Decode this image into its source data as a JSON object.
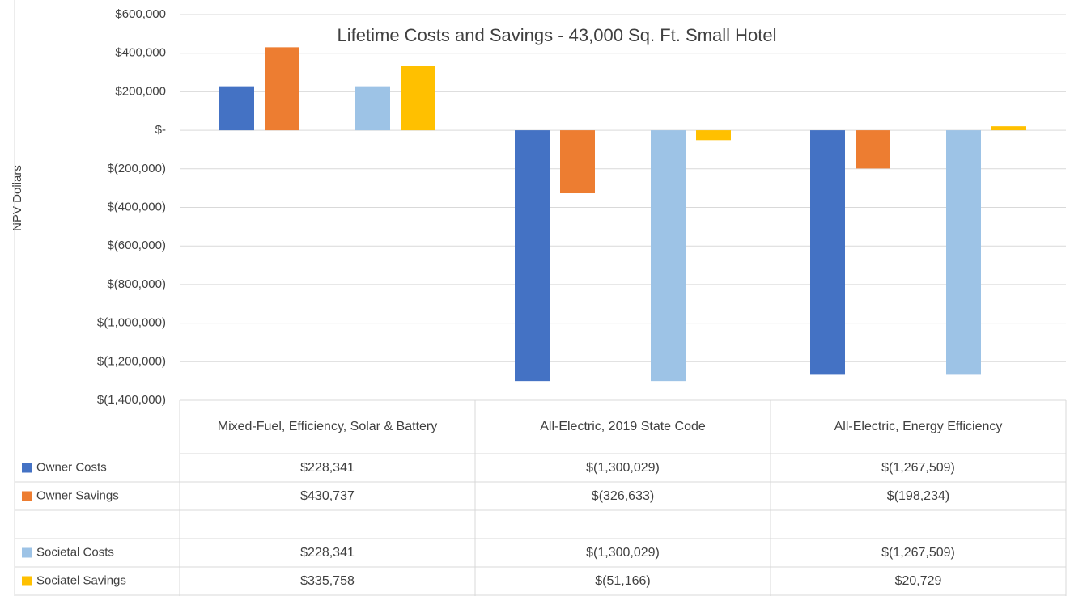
{
  "chart_data": {
    "type": "bar",
    "title": "Lifetime Costs and Savings - 43,000 Sq. Ft. Small Hotel",
    "y_label": "NPV Dollars",
    "categories": [
      "Mixed-Fuel, Efficiency, Solar & Battery",
      "All-Electric, 2019 State Code",
      "All-Electric, Energy Efficiency"
    ],
    "series": [
      {
        "name": "Owner Costs",
        "color": "#4472c4",
        "values": [
          228341,
          -1300029,
          -1267509
        ],
        "value_labels": [
          "$228,341",
          "$(1,300,029)",
          "$(1,267,509)"
        ]
      },
      {
        "name": "Owner Savings",
        "color": "#ed7d31",
        "values": [
          430737,
          -326633,
          -198234
        ],
        "value_labels": [
          "$430,737",
          "$(326,633)",
          "$(198,234)"
        ]
      },
      {
        "name": "Societal Costs",
        "color": "#9dc3e6",
        "values": [
          228341,
          -1300029,
          -1267509
        ],
        "value_labels": [
          "$228,341",
          "$(1,300,029)",
          "$(1,267,509)"
        ]
      },
      {
        "name": "Sociatel Savings",
        "color": "#ffc000",
        "values": [
          335758,
          -51166,
          20729
        ],
        "value_labels": [
          "$335,758",
          "$(51,166)",
          "$20,729"
        ]
      }
    ],
    "ylim": [
      -1400000,
      600000
    ],
    "yticks": [
      {
        "value": 600000,
        "label": "$600,000"
      },
      {
        "value": 400000,
        "label": "$400,000"
      },
      {
        "value": 200000,
        "label": "$200,000"
      },
      {
        "value": 0,
        "label": "$-"
      },
      {
        "value": -200000,
        "label": "$(200,000)"
      },
      {
        "value": -400000,
        "label": "$(400,000)"
      },
      {
        "value": -600000,
        "label": "$(600,000)"
      },
      {
        "value": -800000,
        "label": "$(800,000)"
      },
      {
        "value": -1000000,
        "label": "$(1,000,000)"
      },
      {
        "value": -1200000,
        "label": "$(1,200,000)"
      },
      {
        "value": -1400000,
        "label": "$(1,400,000)"
      }
    ],
    "grid": true
  }
}
